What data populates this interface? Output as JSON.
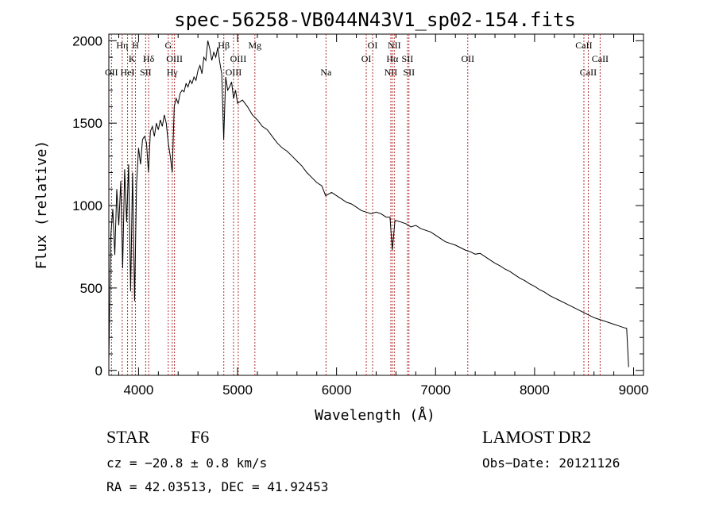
{
  "chart_data": {
    "type": "line",
    "title": "spec-56258-VB044N43V1_sp02-154.fits",
    "xlabel": "Wavelength (Å)",
    "ylabel": "Flux (relative)",
    "xlim": [
      3700,
      9100
    ],
    "ylim": [
      -30,
      2040
    ],
    "xticks": [
      4000,
      5000,
      6000,
      7000,
      8000,
      9000
    ],
    "yticks": [
      0,
      500,
      1000,
      1500,
      2000
    ],
    "grid": false,
    "series": [
      {
        "points": [
          [
            3700,
            60
          ],
          [
            3720,
            820
          ],
          [
            3740,
            980
          ],
          [
            3760,
            700
          ],
          [
            3780,
            1100
          ],
          [
            3800,
            880
          ],
          [
            3820,
            1150
          ],
          [
            3840,
            620
          ],
          [
            3860,
            1220
          ],
          [
            3880,
            900
          ],
          [
            3900,
            1250
          ],
          [
            3920,
            480
          ],
          [
            3940,
            1200
          ],
          [
            3960,
            420
          ],
          [
            3980,
            1130
          ],
          [
            4000,
            1350
          ],
          [
            4020,
            1250
          ],
          [
            4040,
            1400
          ],
          [
            4060,
            1420
          ],
          [
            4080,
            1380
          ],
          [
            4100,
            1200
          ],
          [
            4120,
            1450
          ],
          [
            4140,
            1480
          ],
          [
            4160,
            1420
          ],
          [
            4180,
            1500
          ],
          [
            4200,
            1460
          ],
          [
            4220,
            1520
          ],
          [
            4240,
            1480
          ],
          [
            4260,
            1550
          ],
          [
            4280,
            1500
          ],
          [
            4300,
            1380
          ],
          [
            4320,
            1300
          ],
          [
            4340,
            1200
          ],
          [
            4360,
            1600
          ],
          [
            4380,
            1650
          ],
          [
            4400,
            1620
          ],
          [
            4420,
            1680
          ],
          [
            4440,
            1700
          ],
          [
            4460,
            1690
          ],
          [
            4480,
            1740
          ],
          [
            4500,
            1720
          ],
          [
            4520,
            1760
          ],
          [
            4540,
            1740
          ],
          [
            4560,
            1780
          ],
          [
            4580,
            1760
          ],
          [
            4600,
            1820
          ],
          [
            4620,
            1850
          ],
          [
            4640,
            1800
          ],
          [
            4660,
            1900
          ],
          [
            4680,
            1880
          ],
          [
            4700,
            2000
          ],
          [
            4720,
            1950
          ],
          [
            4740,
            1880
          ],
          [
            4760,
            1930
          ],
          [
            4780,
            1900
          ],
          [
            4800,
            1960
          ],
          [
            4820,
            1870
          ],
          [
            4840,
            1800
          ],
          [
            4860,
            1400
          ],
          [
            4880,
            1780
          ],
          [
            4900,
            1700
          ],
          [
            4920,
            1720
          ],
          [
            4940,
            1750
          ],
          [
            4960,
            1650
          ],
          [
            4980,
            1700
          ],
          [
            5000,
            1620
          ],
          [
            5050,
            1640
          ],
          [
            5100,
            1600
          ],
          [
            5150,
            1550
          ],
          [
            5200,
            1520
          ],
          [
            5250,
            1480
          ],
          [
            5300,
            1460
          ],
          [
            5350,
            1420
          ],
          [
            5400,
            1380
          ],
          [
            5450,
            1350
          ],
          [
            5500,
            1330
          ],
          [
            5550,
            1300
          ],
          [
            5600,
            1270
          ],
          [
            5650,
            1240
          ],
          [
            5700,
            1200
          ],
          [
            5750,
            1170
          ],
          [
            5800,
            1140
          ],
          [
            5850,
            1120
          ],
          [
            5890,
            1060
          ],
          [
            5950,
            1080
          ],
          [
            6000,
            1060
          ],
          [
            6050,
            1040
          ],
          [
            6100,
            1020
          ],
          [
            6150,
            1010
          ],
          [
            6200,
            990
          ],
          [
            6250,
            970
          ],
          [
            6300,
            960
          ],
          [
            6350,
            950
          ],
          [
            6400,
            960
          ],
          [
            6450,
            950
          ],
          [
            6500,
            930
          ],
          [
            6540,
            930
          ],
          [
            6563,
            730
          ],
          [
            6590,
            910
          ],
          [
            6650,
            900
          ],
          [
            6700,
            890
          ],
          [
            6750,
            870
          ],
          [
            6800,
            880
          ],
          [
            6850,
            860
          ],
          [
            6900,
            850
          ],
          [
            6950,
            840
          ],
          [
            7000,
            820
          ],
          [
            7050,
            800
          ],
          [
            7100,
            780
          ],
          [
            7150,
            770
          ],
          [
            7200,
            760
          ],
          [
            7250,
            745
          ],
          [
            7300,
            730
          ],
          [
            7350,
            720
          ],
          [
            7400,
            705
          ],
          [
            7450,
            710
          ],
          [
            7500,
            690
          ],
          [
            7550,
            670
          ],
          [
            7600,
            650
          ],
          [
            7650,
            635
          ],
          [
            7700,
            615
          ],
          [
            7750,
            600
          ],
          [
            7800,
            580
          ],
          [
            7850,
            560
          ],
          [
            7900,
            545
          ],
          [
            7950,
            525
          ],
          [
            8000,
            510
          ],
          [
            8050,
            490
          ],
          [
            8100,
            475
          ],
          [
            8150,
            455
          ],
          [
            8200,
            440
          ],
          [
            8250,
            425
          ],
          [
            8300,
            410
          ],
          [
            8350,
            395
          ],
          [
            8400,
            380
          ],
          [
            8450,
            365
          ],
          [
            8500,
            350
          ],
          [
            8550,
            335
          ],
          [
            8600,
            320
          ],
          [
            8650,
            310
          ],
          [
            8700,
            300
          ],
          [
            8750,
            290
          ],
          [
            8800,
            280
          ],
          [
            8850,
            270
          ],
          [
            8900,
            260
          ],
          [
            8930,
            255
          ],
          [
            8950,
            20
          ]
        ]
      }
    ],
    "lines": [
      {
        "x": 3727,
        "label": "OII",
        "row": 3
      },
      {
        "x": 3835,
        "label": "Hη",
        "row": 1
      },
      {
        "x": 3889,
        "label": "HeI",
        "row": 3
      },
      {
        "x": 3934,
        "label": "K",
        "row": 2
      },
      {
        "x": 3969,
        "label": "H",
        "row": 1
      },
      {
        "x": 4072,
        "label": "SII",
        "row": 3
      },
      {
        "x": 4102,
        "label": "Hδ",
        "row": 2
      },
      {
        "x": 4300,
        "label": "G",
        "row": 1
      },
      {
        "x": 4340,
        "label": "Hγ",
        "row": 3
      },
      {
        "x": 4363,
        "label": "OIII",
        "row": 2
      },
      {
        "x": 4861,
        "label": "Hβ",
        "row": 1
      },
      {
        "x": 4959,
        "label": "OIII",
        "row": 3
      },
      {
        "x": 5007,
        "label": "OIII",
        "row": 2
      },
      {
        "x": 5175,
        "label": "Mg",
        "row": 1
      },
      {
        "x": 5893,
        "label": "Na",
        "row": 3
      },
      {
        "x": 6300,
        "label": "OI",
        "row": 2
      },
      {
        "x": 6364,
        "label": "OI",
        "row": 1
      },
      {
        "x": 6548,
        "label": "NII",
        "row": 3
      },
      {
        "x": 6563,
        "label": "Hα",
        "row": 2
      },
      {
        "x": 6583,
        "label": "NII",
        "row": 1
      },
      {
        "x": 6716,
        "label": "SII",
        "row": 2
      },
      {
        "x": 6731,
        "label": "SII",
        "row": 3
      },
      {
        "x": 7325,
        "label": "OII",
        "row": 2
      },
      {
        "x": 8498,
        "label": "CaII",
        "row": 1
      },
      {
        "x": 8542,
        "label": "CaII",
        "row": 3
      },
      {
        "x": 8662,
        "label": "CaII",
        "row": 2
      }
    ],
    "line_color": "#b03030"
  },
  "info": {
    "class": "STAR",
    "subclass": "F6",
    "cz": "cz = −20.8 ± 0.8 km/s",
    "radec": "RA =  42.03513, DEC =  41.92453",
    "survey": "LAMOST DR2",
    "obsdate": "Obs−Date: 20121126"
  }
}
